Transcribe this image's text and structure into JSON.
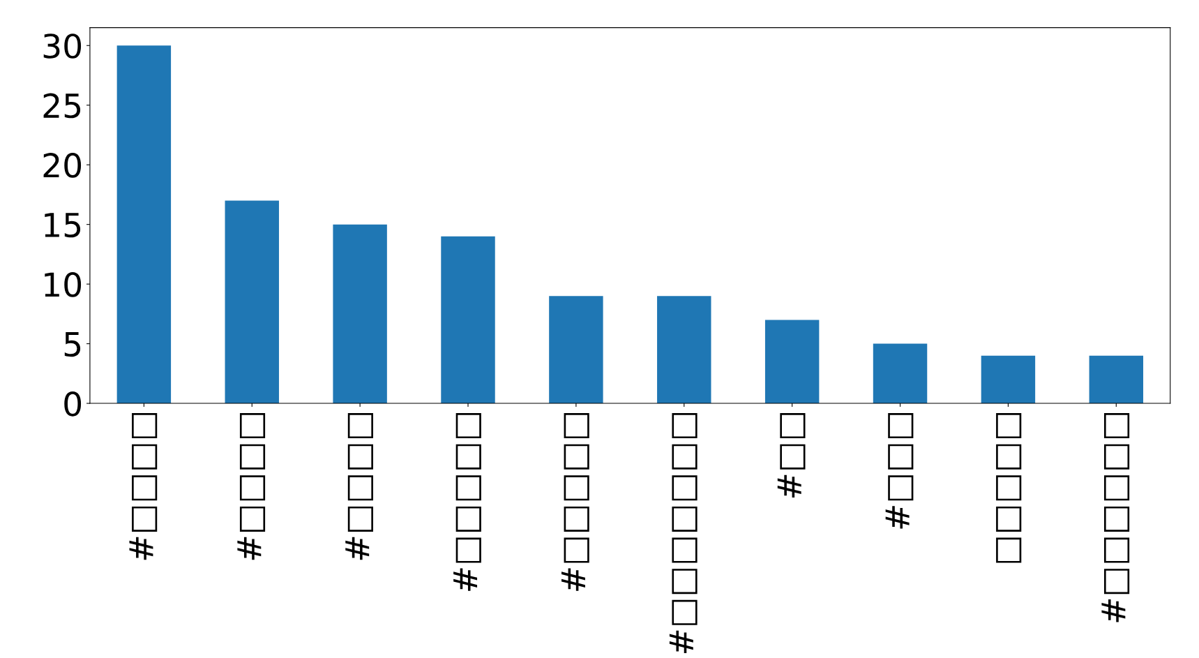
{
  "chart_data": {
    "type": "bar",
    "categories": [
      "#□□□□",
      "#□□□□",
      "#□□□□",
      "#□□□□□",
      "#□□□□□",
      "#□□□□□□□",
      "#□□",
      "#□□□",
      "□□□□□",
      "#□□□□□□"
    ],
    "values": [
      30,
      17,
      15,
      14,
      9,
      9,
      7,
      5,
      4,
      4
    ],
    "color": "#1f77b4",
    "ylim": [
      0,
      31.5
    ],
    "yticks": [
      0,
      5,
      10,
      15,
      20,
      25,
      30
    ],
    "grid": false,
    "legend": false
  }
}
